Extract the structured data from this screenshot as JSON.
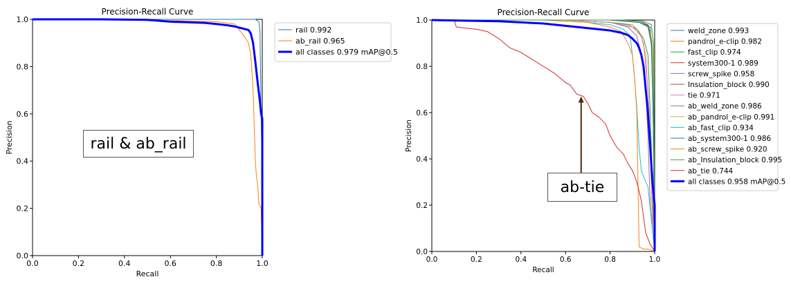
{
  "chart_data": [
    {
      "type": "line",
      "title": "Precision-Recall Curve",
      "xlabel": "Recall",
      "ylabel": "Precision",
      "xlim": [
        0,
        1
      ],
      "ylim": [
        0,
        1
      ],
      "xticks": [
        "0.0",
        "0.2",
        "0.4",
        "0.6",
        "0.8",
        "1.0"
      ],
      "yticks": [
        "0.0",
        "0.2",
        "0.4",
        "0.6",
        "0.8",
        "1.0"
      ],
      "legend_position": "outside-right-top",
      "annotation": "rail & ab_rail",
      "series": [
        {
          "name": "rail 0.992",
          "color": "#1f77b4",
          "width": 1,
          "x": [
            0,
            0.5,
            0.9,
            0.97,
            0.985,
            0.99,
            0.995,
            1.0,
            1.0
          ],
          "y": [
            1.0,
            1.0,
            1.0,
            1.0,
            0.99,
            0.95,
            0.6,
            0.3,
            0.0
          ]
        },
        {
          "name": "ab_rail 0.965",
          "color": "#ff7f0e",
          "width": 1,
          "x": [
            0,
            0.3,
            0.6,
            0.8,
            0.88,
            0.92,
            0.94,
            0.95,
            0.955,
            0.96,
            0.965,
            0.97,
            0.975,
            0.98,
            0.985,
            0.995,
            1.0
          ],
          "y": [
            1.0,
            1.0,
            0.995,
            0.99,
            0.98,
            0.93,
            0.9,
            0.85,
            0.78,
            0.7,
            0.55,
            0.4,
            0.33,
            0.3,
            0.22,
            0.2,
            0.0
          ]
        },
        {
          "name": "all classes 0.979 mAP@0.5",
          "color": "#0000ff",
          "width": 3,
          "x": [
            0,
            0.3,
            0.5,
            0.6,
            0.75,
            0.8,
            0.85,
            0.88,
            0.92,
            0.94,
            0.95,
            0.96,
            0.97,
            0.98,
            0.99,
            0.995,
            1.0,
            1.0
          ],
          "y": [
            1.0,
            1.0,
            0.998,
            0.99,
            0.985,
            0.98,
            0.975,
            0.97,
            0.96,
            0.955,
            0.94,
            0.9,
            0.82,
            0.73,
            0.65,
            0.6,
            0.58,
            0.0
          ]
        }
      ]
    },
    {
      "type": "line",
      "title": "Precision-Recall Curve",
      "xlabel": "Recall",
      "ylabel": "Precision",
      "xlim": [
        0,
        1
      ],
      "ylim": [
        0,
        1
      ],
      "xticks": [
        "0.0",
        "0.2",
        "0.4",
        "0.6",
        "0.8",
        "1.0"
      ],
      "yticks": [
        "0.0",
        "0.2",
        "0.4",
        "0.6",
        "0.8",
        "1.0"
      ],
      "legend_position": "outside-right-top",
      "annotation": "ab-tie",
      "arrow_target": {
        "x": 0.67,
        "y": 0.67
      },
      "series": [
        {
          "name": "weld_zone 0.993",
          "color": "#1f77b4",
          "width": 1,
          "x": [
            0,
            0.8,
            0.95,
            0.98,
            0.99,
            1.0
          ],
          "y": [
            1,
            1,
            0.99,
            0.97,
            0.85,
            0.0
          ]
        },
        {
          "name": "pandrol_e-clip 0.982",
          "color": "#ff7f0e",
          "width": 1,
          "x": [
            0,
            0.6,
            0.8,
            0.9,
            0.93,
            0.95,
            0.97,
            0.98,
            0.99,
            1.0
          ],
          "y": [
            1,
            1,
            0.99,
            0.98,
            0.95,
            0.9,
            0.7,
            0.5,
            0.1,
            0.0
          ]
        },
        {
          "name": "fast_clip 0.974",
          "color": "#2ca02c",
          "width": 1,
          "x": [
            0,
            0.6,
            0.8,
            0.88,
            0.92,
            0.95,
            0.97,
            0.98,
            0.99,
            1.0
          ],
          "y": [
            1,
            1,
            0.99,
            0.98,
            0.96,
            0.92,
            0.85,
            0.6,
            0.3,
            0.0
          ]
        },
        {
          "name": "system300-1 0.989",
          "color": "#d62728",
          "width": 1,
          "x": [
            0,
            0.8,
            0.93,
            0.97,
            0.985,
            0.995,
            1.0
          ],
          "y": [
            1,
            1,
            0.99,
            0.98,
            0.92,
            0.6,
            0.0
          ]
        },
        {
          "name": "screw_spike 0.958",
          "color": "#9467bd",
          "width": 1,
          "x": [
            0,
            0.6,
            0.8,
            0.88,
            0.92,
            0.94,
            0.96,
            0.97,
            0.98,
            1.0
          ],
          "y": [
            1,
            1,
            0.99,
            0.97,
            0.93,
            0.85,
            0.7,
            0.5,
            0.2,
            0.0
          ]
        },
        {
          "name": "Insulation_block 0.990",
          "color": "#8c564b",
          "width": 1,
          "x": [
            0,
            0.8,
            0.94,
            0.975,
            0.99,
            1.0
          ],
          "y": [
            1,
            1,
            0.99,
            0.97,
            0.85,
            0.0
          ]
        },
        {
          "name": "tie 0.971",
          "color": "#e377c2",
          "width": 1,
          "x": [
            0,
            0.6,
            0.8,
            0.9,
            0.94,
            0.96,
            0.975,
            0.985,
            1.0
          ],
          "y": [
            1,
            1,
            0.99,
            0.97,
            0.93,
            0.85,
            0.6,
            0.3,
            0.0
          ]
        },
        {
          "name": "ab_weld_zone 0.986",
          "color": "#7f7f7f",
          "width": 1,
          "x": [
            0,
            0.8,
            0.93,
            0.97,
            0.985,
            0.995,
            1.0
          ],
          "y": [
            1,
            1,
            0.99,
            0.97,
            0.9,
            0.5,
            0.0
          ]
        },
        {
          "name": "ab_pandrol_e-clip 0.991",
          "color": "#bcbd22",
          "width": 1,
          "x": [
            0,
            0.8,
            0.94,
            0.975,
            0.99,
            0.998,
            1.0
          ],
          "y": [
            1,
            1,
            0.99,
            0.97,
            0.9,
            0.4,
            0.0
          ]
        },
        {
          "name": "ab_fast_clip 0.934",
          "color": "#17becf",
          "width": 1,
          "x": [
            0,
            0.5,
            0.7,
            0.8,
            0.86,
            0.89,
            0.9,
            0.91,
            0.92,
            0.93,
            0.94,
            0.96,
            0.97,
            1.0
          ],
          "y": [
            1,
            1,
            0.99,
            0.98,
            0.96,
            0.93,
            0.85,
            0.75,
            0.62,
            0.45,
            0.35,
            0.3,
            0.28,
            0.0
          ]
        },
        {
          "name": "ab_system300-1 0.986",
          "color": "#1f77b4",
          "width": 1,
          "x": [
            0,
            0.8,
            0.93,
            0.97,
            0.985,
            0.995,
            1.0
          ],
          "y": [
            1,
            1,
            0.99,
            0.975,
            0.9,
            0.55,
            0.0
          ]
        },
        {
          "name": "ab_screw_spike 0.920",
          "color": "#ff7f0e",
          "width": 1,
          "x": [
            0,
            0.5,
            0.7,
            0.8,
            0.85,
            0.88,
            0.9,
            0.91,
            0.92,
            0.925,
            0.93,
            0.95,
            0.97,
            1.0
          ],
          "y": [
            1,
            1,
            0.99,
            0.97,
            0.95,
            0.9,
            0.85,
            0.75,
            0.6,
            0.3,
            0.02,
            0.01,
            0.01,
            0.0
          ]
        },
        {
          "name": "ab_Insulation_block 0.995",
          "color": "#2ca02c",
          "width": 1,
          "x": [
            0,
            0.85,
            0.95,
            0.985,
            0.995,
            1.0
          ],
          "y": [
            1,
            1,
            0.995,
            0.98,
            0.9,
            0.0
          ]
        },
        {
          "name": "ab_tie 0.744",
          "color": "#d62728",
          "width": 1,
          "x": [
            0,
            0.1,
            0.11,
            0.2,
            0.25,
            0.3,
            0.35,
            0.4,
            0.45,
            0.5,
            0.55,
            0.6,
            0.62,
            0.65,
            0.68,
            0.7,
            0.72,
            0.75,
            0.78,
            0.8,
            0.83,
            0.86,
            0.88,
            0.9,
            0.92,
            0.94,
            0.95,
            0.96,
            0.98,
            1.0
          ],
          "y": [
            1.0,
            1.0,
            0.97,
            0.96,
            0.95,
            0.92,
            0.88,
            0.86,
            0.83,
            0.8,
            0.77,
            0.73,
            0.72,
            0.68,
            0.67,
            0.64,
            0.6,
            0.58,
            0.55,
            0.5,
            0.45,
            0.42,
            0.38,
            0.35,
            0.3,
            0.22,
            0.15,
            0.08,
            0.03,
            0.0
          ]
        },
        {
          "name": "all classes 0.958 mAP@0.5",
          "color": "#0000ff",
          "width": 3,
          "x": [
            0,
            0.3,
            0.5,
            0.6,
            0.7,
            0.75,
            0.8,
            0.85,
            0.88,
            0.9,
            0.92,
            0.93,
            0.94,
            0.95,
            0.96,
            0.97,
            0.98,
            0.99,
            1.0,
            1.0
          ],
          "y": [
            1.0,
            0.995,
            0.985,
            0.975,
            0.965,
            0.96,
            0.955,
            0.945,
            0.935,
            0.92,
            0.9,
            0.88,
            0.85,
            0.8,
            0.7,
            0.6,
            0.45,
            0.3,
            0.2,
            0.0
          ]
        }
      ]
    }
  ]
}
